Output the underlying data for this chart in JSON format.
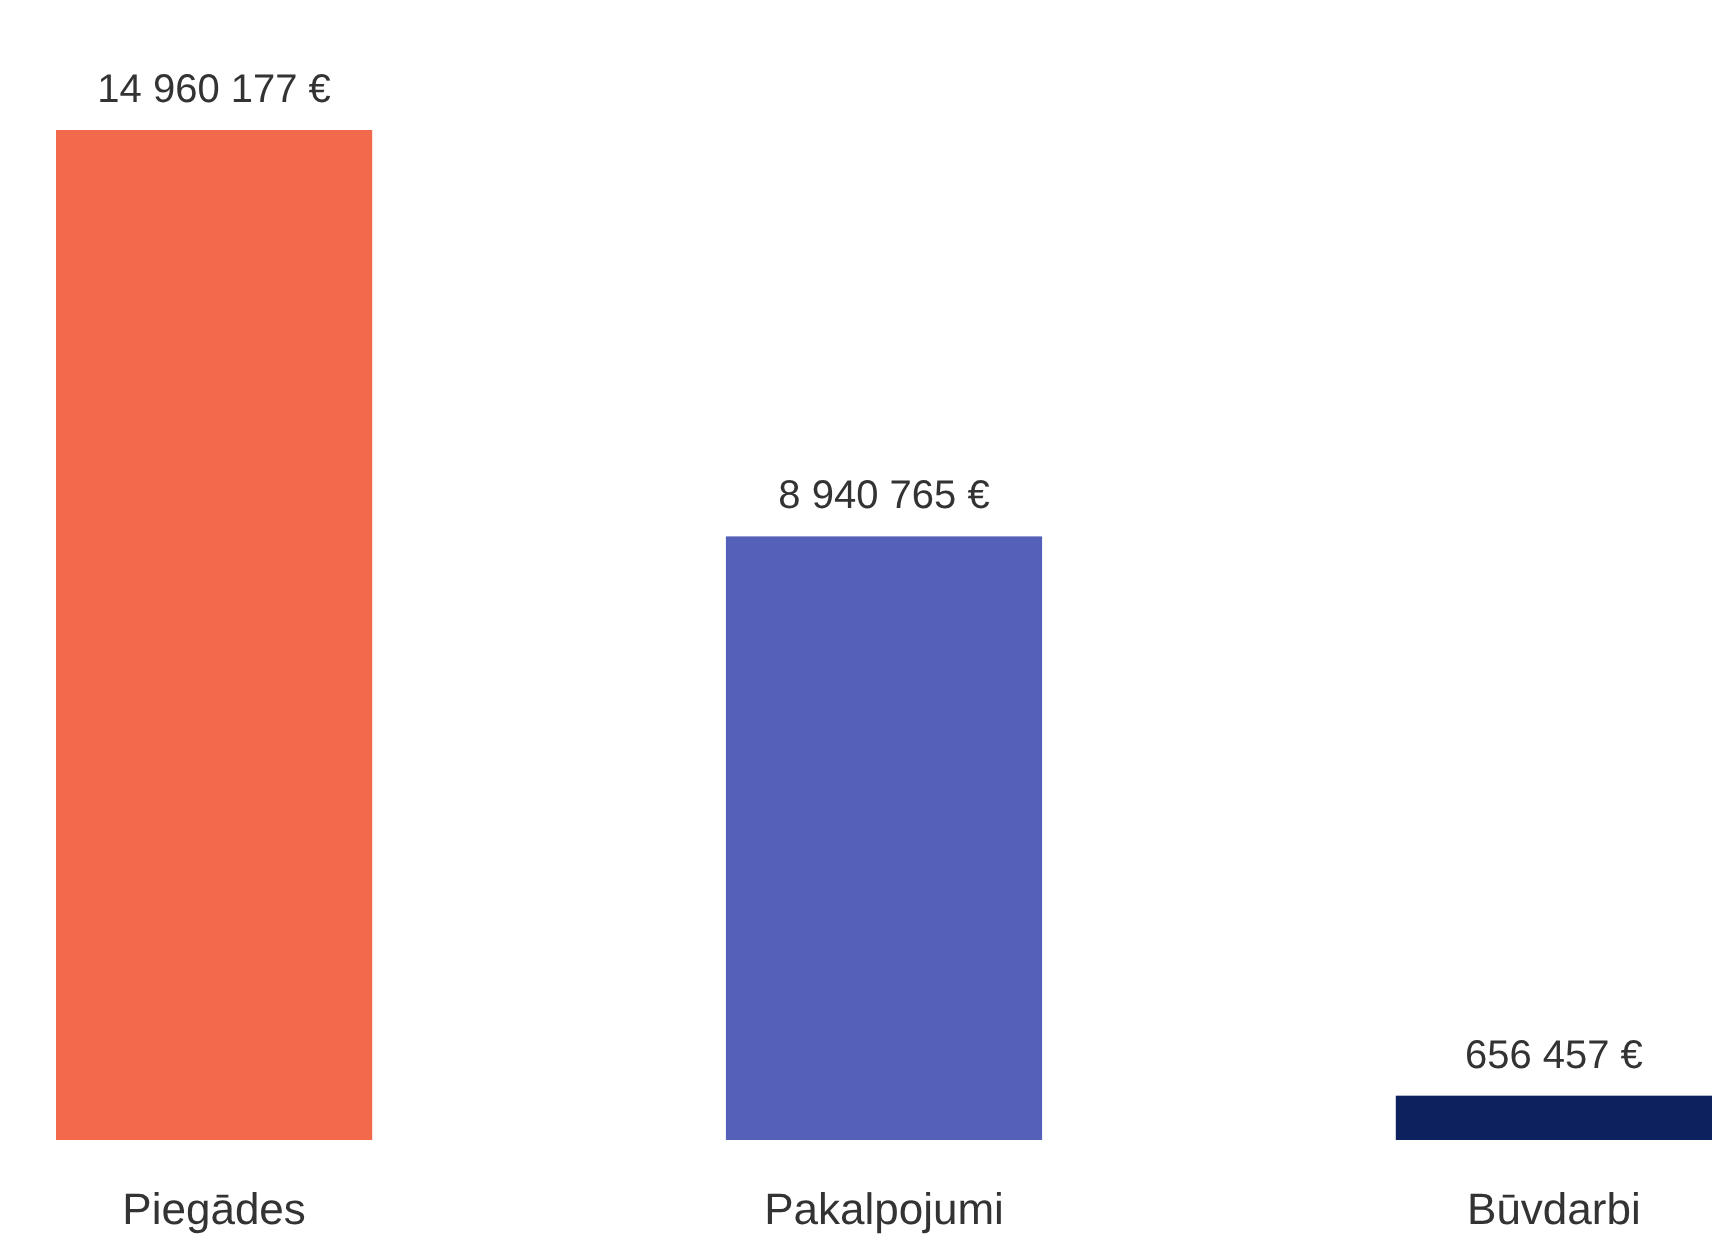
{
  "chart_data": {
    "type": "bar",
    "categories": [
      "Piegādes",
      "Pakalpojumi",
      "Būvdarbi"
    ],
    "values": [
      14960177,
      8940765,
      656457
    ],
    "colors": [
      "#f2694c",
      "#5560b9",
      "#0c215e"
    ],
    "value_labels": [
      "14 960 177 €",
      "8 940 765 €",
      "656 457 €"
    ]
  }
}
